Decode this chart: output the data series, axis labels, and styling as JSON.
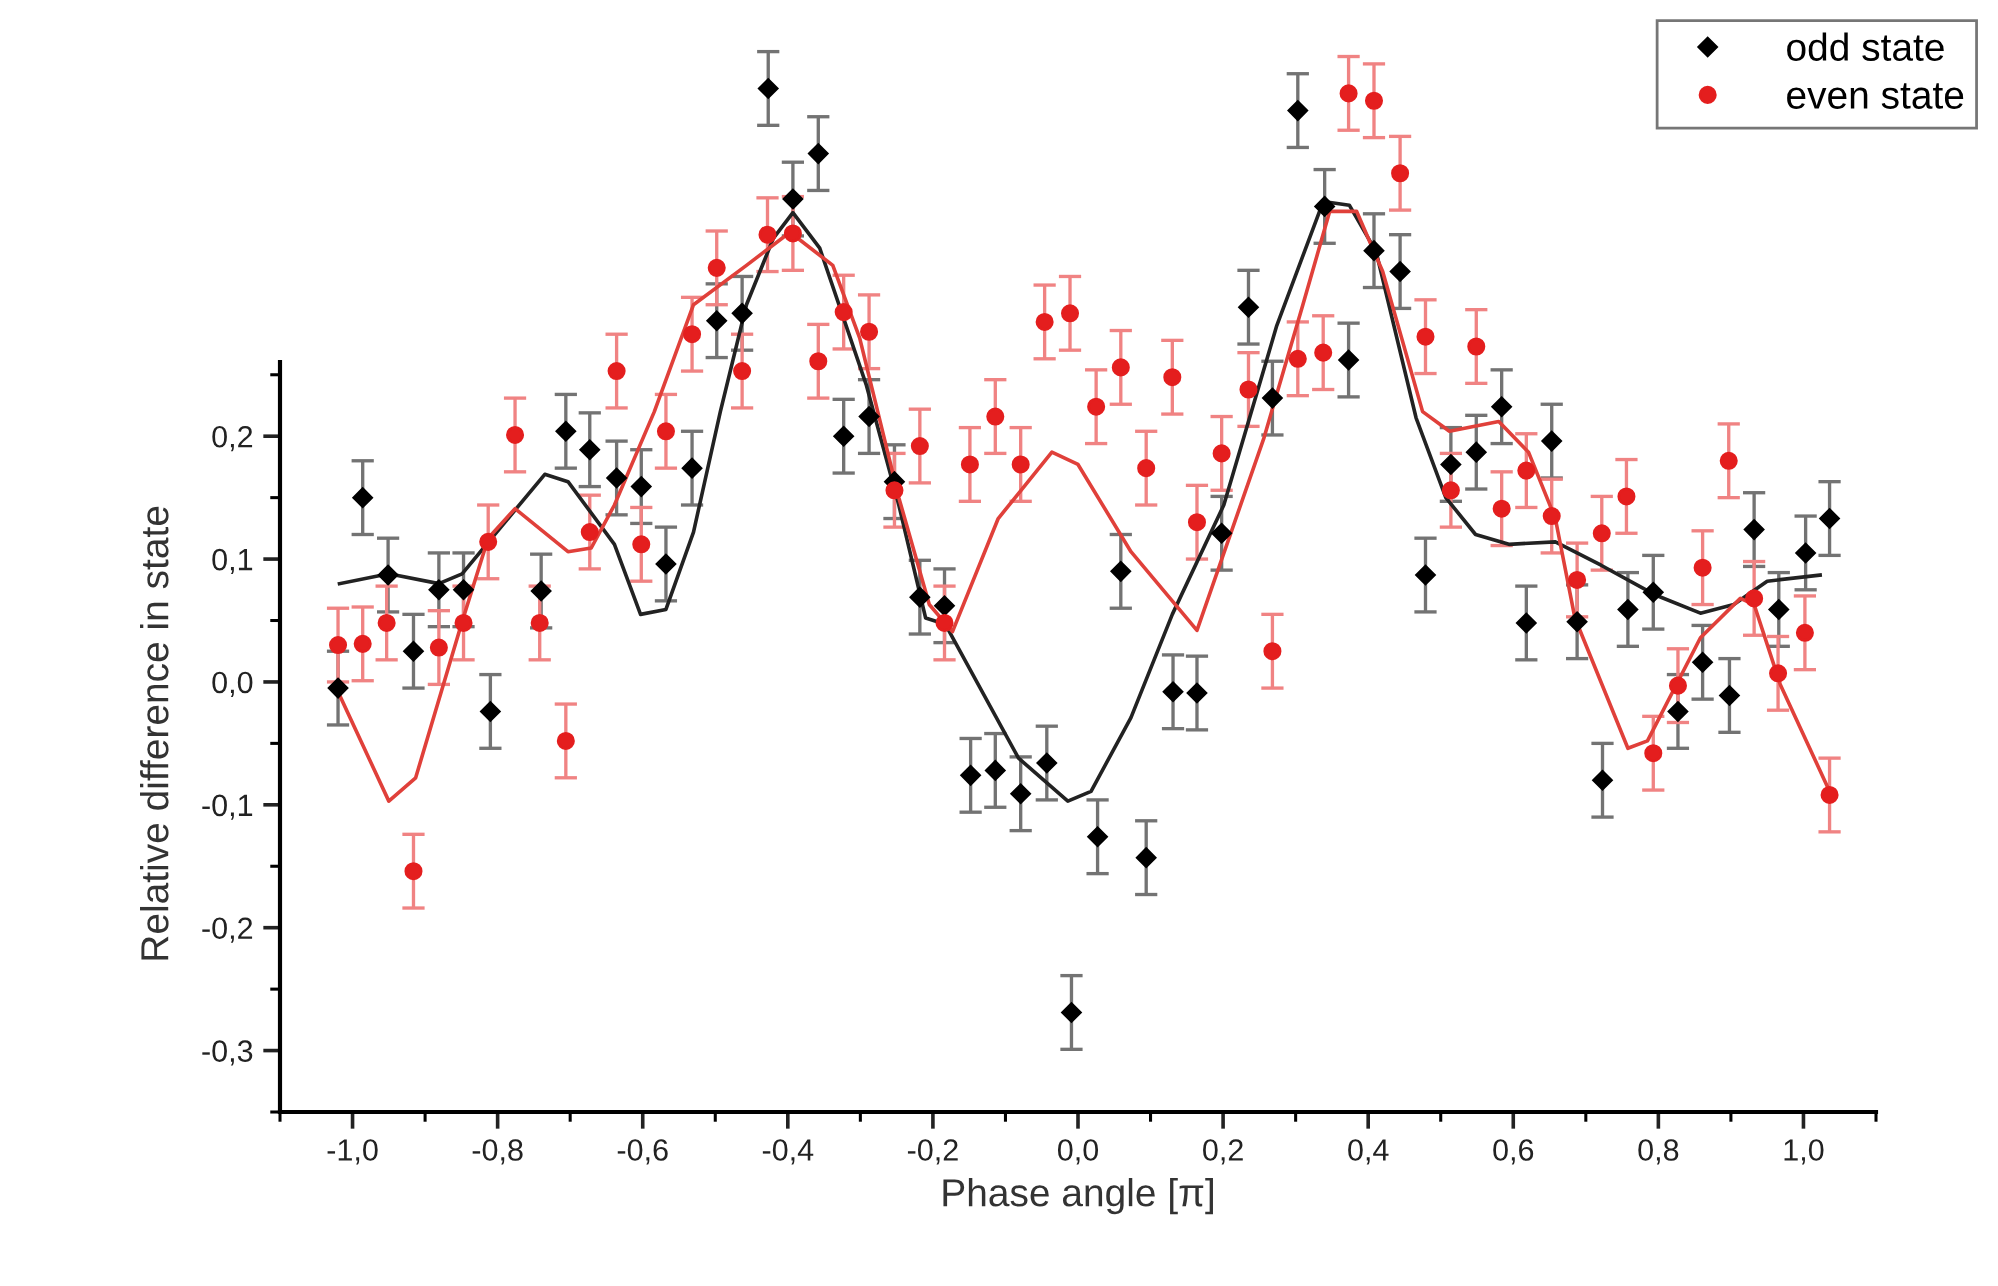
{
  "chart_data": {
    "type": "scatter",
    "xlabel": "Phase angle [π]",
    "ylabel": "Relative difference in state",
    "xlim": [
      -1.1,
      1.1
    ],
    "ylim": [
      -0.35,
      0.555
    ],
    "xticks": [
      {
        "value": -1.0,
        "label": "-1,0"
      },
      {
        "value": -0.8,
        "label": "-0,8"
      },
      {
        "value": -0.6,
        "label": "-0,6"
      },
      {
        "value": -0.4,
        "label": "-0,4"
      },
      {
        "value": -0.2,
        "label": "-0,2"
      },
      {
        "value": 0.0,
        "label": "0,0"
      },
      {
        "value": 0.2,
        "label": "0,2"
      },
      {
        "value": 0.4,
        "label": "0,4"
      },
      {
        "value": 0.6,
        "label": "0,6"
      },
      {
        "value": 0.8,
        "label": "0,8"
      },
      {
        "value": 1.0,
        "label": "1,0"
      }
    ],
    "yticks": [
      {
        "value": -0.3,
        "label": "-0,3"
      },
      {
        "value": -0.2,
        "label": "-0,2"
      },
      {
        "value": -0.1,
        "label": "-0,1"
      },
      {
        "value": 0.0,
        "label": "0,0"
      },
      {
        "value": 0.1,
        "label": "0,1"
      },
      {
        "value": 0.2,
        "label": "0,2"
      }
    ],
    "legend": "top right",
    "series": [
      {
        "name": "odd state",
        "marker": "diamond",
        "color": "#000000",
        "x": [
          -1.02,
          -0.986,
          -0.951,
          -0.916,
          -0.881,
          -0.847,
          -0.81,
          -0.74,
          -0.706,
          -0.673,
          -0.636,
          -0.602,
          -0.568,
          -0.532,
          -0.498,
          -0.463,
          -0.427,
          -0.393,
          -0.358,
          -0.323,
          -0.288,
          -0.253,
          -0.218,
          -0.184,
          -0.148,
          -0.114,
          -0.079,
          -0.043,
          -0.009,
          0.027,
          0.059,
          0.094,
          0.131,
          0.164,
          0.198,
          0.235,
          0.268,
          0.303,
          0.34,
          0.373,
          0.408,
          0.444,
          0.479,
          0.514,
          0.549,
          0.584,
          0.618,
          0.653,
          0.688,
          0.723,
          0.758,
          0.793,
          0.827,
          0.861,
          0.898,
          0.932,
          0.966,
          1.003,
          1.036
        ],
        "values": [
          -0.005,
          0.15,
          0.087,
          0.025,
          0.075,
          0.075,
          -0.024,
          0.074,
          0.204,
          0.189,
          0.166,
          0.159,
          0.096,
          0.174,
          0.294,
          0.3,
          0.483,
          0.393,
          0.43,
          0.2,
          0.216,
          0.163,
          0.069,
          0.062,
          -0.076,
          -0.072,
          -0.091,
          -0.066,
          -0.269,
          -0.126,
          0.09,
          -0.143,
          -0.008,
          -0.009,
          0.121,
          0.305,
          0.231,
          0.465,
          0.387,
          0.262,
          0.351,
          0.334,
          0.087,
          0.177,
          0.187,
          0.224,
          0.048,
          0.196,
          0.049,
          -0.08,
          0.059,
          0.073,
          -0.024,
          0.016,
          -0.011,
          0.124,
          0.059,
          0.105,
          0.133
        ],
        "errors": [
          0.03,
          0.03,
          0.03,
          0.03,
          0.03,
          0.03,
          0.03,
          0.03,
          0.03,
          0.03,
          0.03,
          0.03,
          0.03,
          0.03,
          0.03,
          0.03,
          0.03,
          0.03,
          0.03,
          0.03,
          0.03,
          0.03,
          0.03,
          0.03,
          0.03,
          0.03,
          0.03,
          0.03,
          0.03,
          0.03,
          0.03,
          0.03,
          0.03,
          0.03,
          0.03,
          0.03,
          0.03,
          0.03,
          0.03,
          0.03,
          0.03,
          0.03,
          0.03,
          0.03,
          0.03,
          0.03,
          0.03,
          0.03,
          0.03,
          0.03,
          0.03,
          0.03,
          0.03,
          0.03,
          0.03,
          0.03,
          0.03,
          0.03,
          0.03
        ]
      },
      {
        "name": "even state",
        "marker": "circle",
        "color": "#e41e1e",
        "x": [
          -1.02,
          -0.986,
          -0.953,
          -0.916,
          -0.881,
          -0.847,
          -0.813,
          -0.776,
          -0.742,
          -0.706,
          -0.673,
          -0.636,
          -0.602,
          -0.568,
          -0.532,
          -0.498,
          -0.463,
          -0.428,
          -0.393,
          -0.358,
          -0.323,
          -0.288,
          -0.253,
          -0.218,
          -0.184,
          -0.149,
          -0.114,
          -0.079,
          -0.046,
          -0.011,
          0.025,
          0.059,
          0.094,
          0.13,
          0.164,
          0.198,
          0.235,
          0.268,
          0.303,
          0.338,
          0.373,
          0.408,
          0.444,
          0.479,
          0.514,
          0.549,
          0.584,
          0.618,
          0.653,
          0.688,
          0.722,
          0.756,
          0.793,
          0.827,
          0.861,
          0.897,
          0.932,
          0.965,
          1.002,
          1.036
        ],
        "values": [
          0.03,
          0.031,
          0.048,
          -0.154,
          0.028,
          0.048,
          0.114,
          0.201,
          0.048,
          -0.048,
          0.122,
          0.253,
          0.112,
          0.204,
          0.283,
          0.337,
          0.253,
          0.364,
          0.365,
          0.261,
          0.301,
          0.285,
          0.156,
          0.192,
          0.048,
          0.177,
          0.216,
          0.177,
          0.293,
          0.3,
          0.224,
          0.256,
          0.174,
          0.248,
          0.13,
          0.186,
          0.238,
          0.025,
          0.263,
          0.268,
          0.479,
          0.473,
          0.414,
          0.281,
          0.156,
          0.273,
          0.141,
          0.172,
          0.135,
          0.083,
          0.121,
          0.151,
          -0.058,
          -0.003,
          0.093,
          0.18,
          0.068,
          0.007,
          0.04,
          -0.092
        ],
        "errors": [
          0.03,
          0.03,
          0.03,
          0.03,
          0.03,
          0.03,
          0.03,
          0.03,
          0.03,
          0.03,
          0.03,
          0.03,
          0.03,
          0.03,
          0.03,
          0.03,
          0.03,
          0.03,
          0.03,
          0.03,
          0.03,
          0.03,
          0.03,
          0.03,
          0.03,
          0.03,
          0.03,
          0.03,
          0.03,
          0.03,
          0.03,
          0.03,
          0.03,
          0.03,
          0.03,
          0.03,
          0.03,
          0.03,
          0.03,
          0.03,
          0.03,
          0.03,
          0.03,
          0.03,
          0.03,
          0.03,
          0.03,
          0.03,
          0.03,
          0.03,
          0.03,
          0.03,
          0.03,
          0.03,
          0.03,
          0.03,
          0.03,
          0.03,
          0.03,
          0.03
        ]
      },
      {
        "type": "line",
        "color": "#222222",
        "x": [
          -1.018,
          -0.95,
          -0.881,
          -0.849,
          -0.735,
          -0.703,
          -0.639,
          -0.603,
          -0.568,
          -0.53,
          -0.493,
          -0.457,
          -0.42,
          -0.393,
          -0.356,
          -0.292,
          -0.247,
          -0.21,
          -0.183,
          -0.082,
          -0.014,
          0.018,
          0.073,
          0.13,
          0.201,
          0.274,
          0.338,
          0.374,
          0.411,
          0.466,
          0.507,
          0.548,
          0.594,
          0.658,
          0.721,
          0.795,
          0.858,
          0.904,
          0.95,
          1.023
        ],
        "values": [
          0.08,
          0.088,
          0.08,
          0.088,
          0.169,
          0.163,
          0.112,
          0.055,
          0.059,
          0.122,
          0.22,
          0.307,
          0.361,
          0.382,
          0.353,
          0.242,
          0.144,
          0.052,
          0.047,
          -0.062,
          -0.097,
          -0.089,
          -0.029,
          0.055,
          0.144,
          0.29,
          0.391,
          0.388,
          0.35,
          0.215,
          0.15,
          0.12,
          0.112,
          0.114,
          0.095,
          0.071,
          0.056,
          0.063,
          0.082,
          0.087
        ]
      },
      {
        "type": "line",
        "color": "#e0403a",
        "x": [
          -1.02,
          -0.95,
          -0.913,
          -0.849,
          -0.813,
          -0.776,
          -0.703,
          -0.671,
          -0.639,
          -0.584,
          -0.53,
          -0.457,
          -0.397,
          -0.338,
          -0.301,
          -0.247,
          -0.205,
          -0.173,
          -0.11,
          -0.036,
          0.0,
          0.073,
          0.164,
          0.256,
          0.31,
          0.347,
          0.384,
          0.42,
          0.475,
          0.512,
          0.58,
          0.621,
          0.658,
          0.685,
          0.758,
          0.785,
          0.858,
          0.913,
          0.932,
          0.968,
          1.036
        ],
        "values": [
          -0.008,
          -0.097,
          -0.078,
          0.049,
          0.117,
          0.141,
          0.106,
          0.109,
          0.144,
          0.22,
          0.307,
          0.339,
          0.366,
          0.339,
          0.28,
          0.15,
          0.063,
          0.041,
          0.133,
          0.187,
          0.177,
          0.106,
          0.042,
          0.198,
          0.307,
          0.383,
          0.383,
          0.334,
          0.22,
          0.204,
          0.212,
          0.187,
          0.133,
          0.052,
          -0.054,
          -0.048,
          0.036,
          0.068,
          0.063,
          -0.002,
          -0.089
        ]
      }
    ]
  }
}
